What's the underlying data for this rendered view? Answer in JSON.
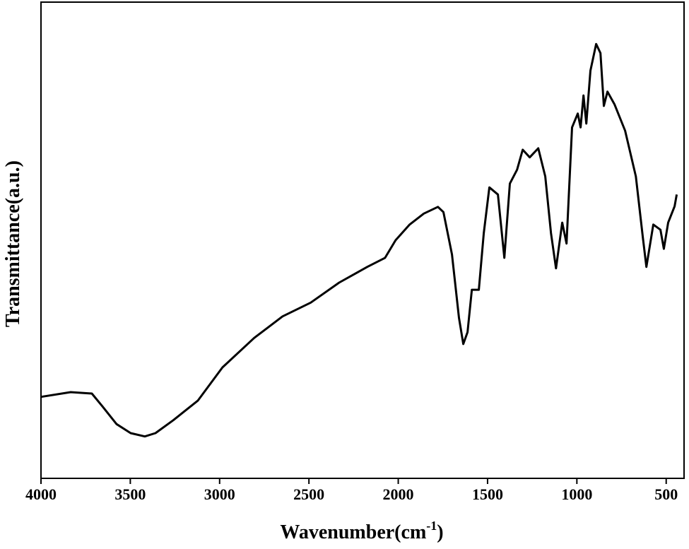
{
  "chart_data": {
    "type": "line",
    "ylabel": "Transmittance(a.u.)",
    "xlabel": {
      "text": "Wavenumber(cm",
      "sup": "-1",
      "end": ")"
    },
    "xlim": [
      4000,
      400
    ],
    "ylim": [
      0,
      100
    ],
    "xticks": [
      4000,
      3500,
      3000,
      2500,
      2000,
      1500,
      1000,
      500
    ],
    "x": [
      4000,
      3834,
      3715,
      3656,
      3577,
      3498,
      3419,
      3359,
      3260,
      3122,
      2984,
      2806,
      2648,
      2490,
      2331,
      2173,
      2074,
      2015,
      1936,
      1857,
      1778,
      1747,
      1699,
      1660,
      1636,
      1612,
      1588,
      1549,
      1521,
      1490,
      1442,
      1406,
      1375,
      1335,
      1303,
      1264,
      1216,
      1177,
      1145,
      1117,
      1082,
      1058,
      1027,
      995,
      979,
      963,
      947,
      924,
      892,
      868,
      849,
      829,
      789,
      730,
      670,
      631,
      611,
      572,
      532,
      513,
      489,
      453,
      441
    ],
    "series": [
      {
        "color": "#000000",
        "values": [
          17.1,
          18.1,
          17.8,
          15.1,
          11.4,
          9.5,
          8.8,
          9.5,
          12.2,
          16.3,
          23.3,
          29.5,
          34.0,
          36.9,
          41.1,
          44.4,
          46.3,
          50.0,
          53.3,
          55.6,
          57.0,
          55.9,
          47.0,
          33.7,
          28.2,
          30.7,
          39.6,
          39.6,
          51.5,
          61.1,
          59.6,
          46.3,
          61.9,
          64.8,
          69.0,
          67.4,
          69.3,
          63.4,
          51.5,
          44.1,
          53.7,
          49.3,
          73.7,
          76.6,
          73.7,
          80.4,
          74.5,
          85.6,
          91.2,
          89.3,
          78.2,
          81.2,
          78.5,
          73.0,
          63.4,
          50.7,
          44.4,
          53.3,
          52.2,
          48.2,
          53.7,
          57.1,
          59.6
        ]
      }
    ]
  }
}
